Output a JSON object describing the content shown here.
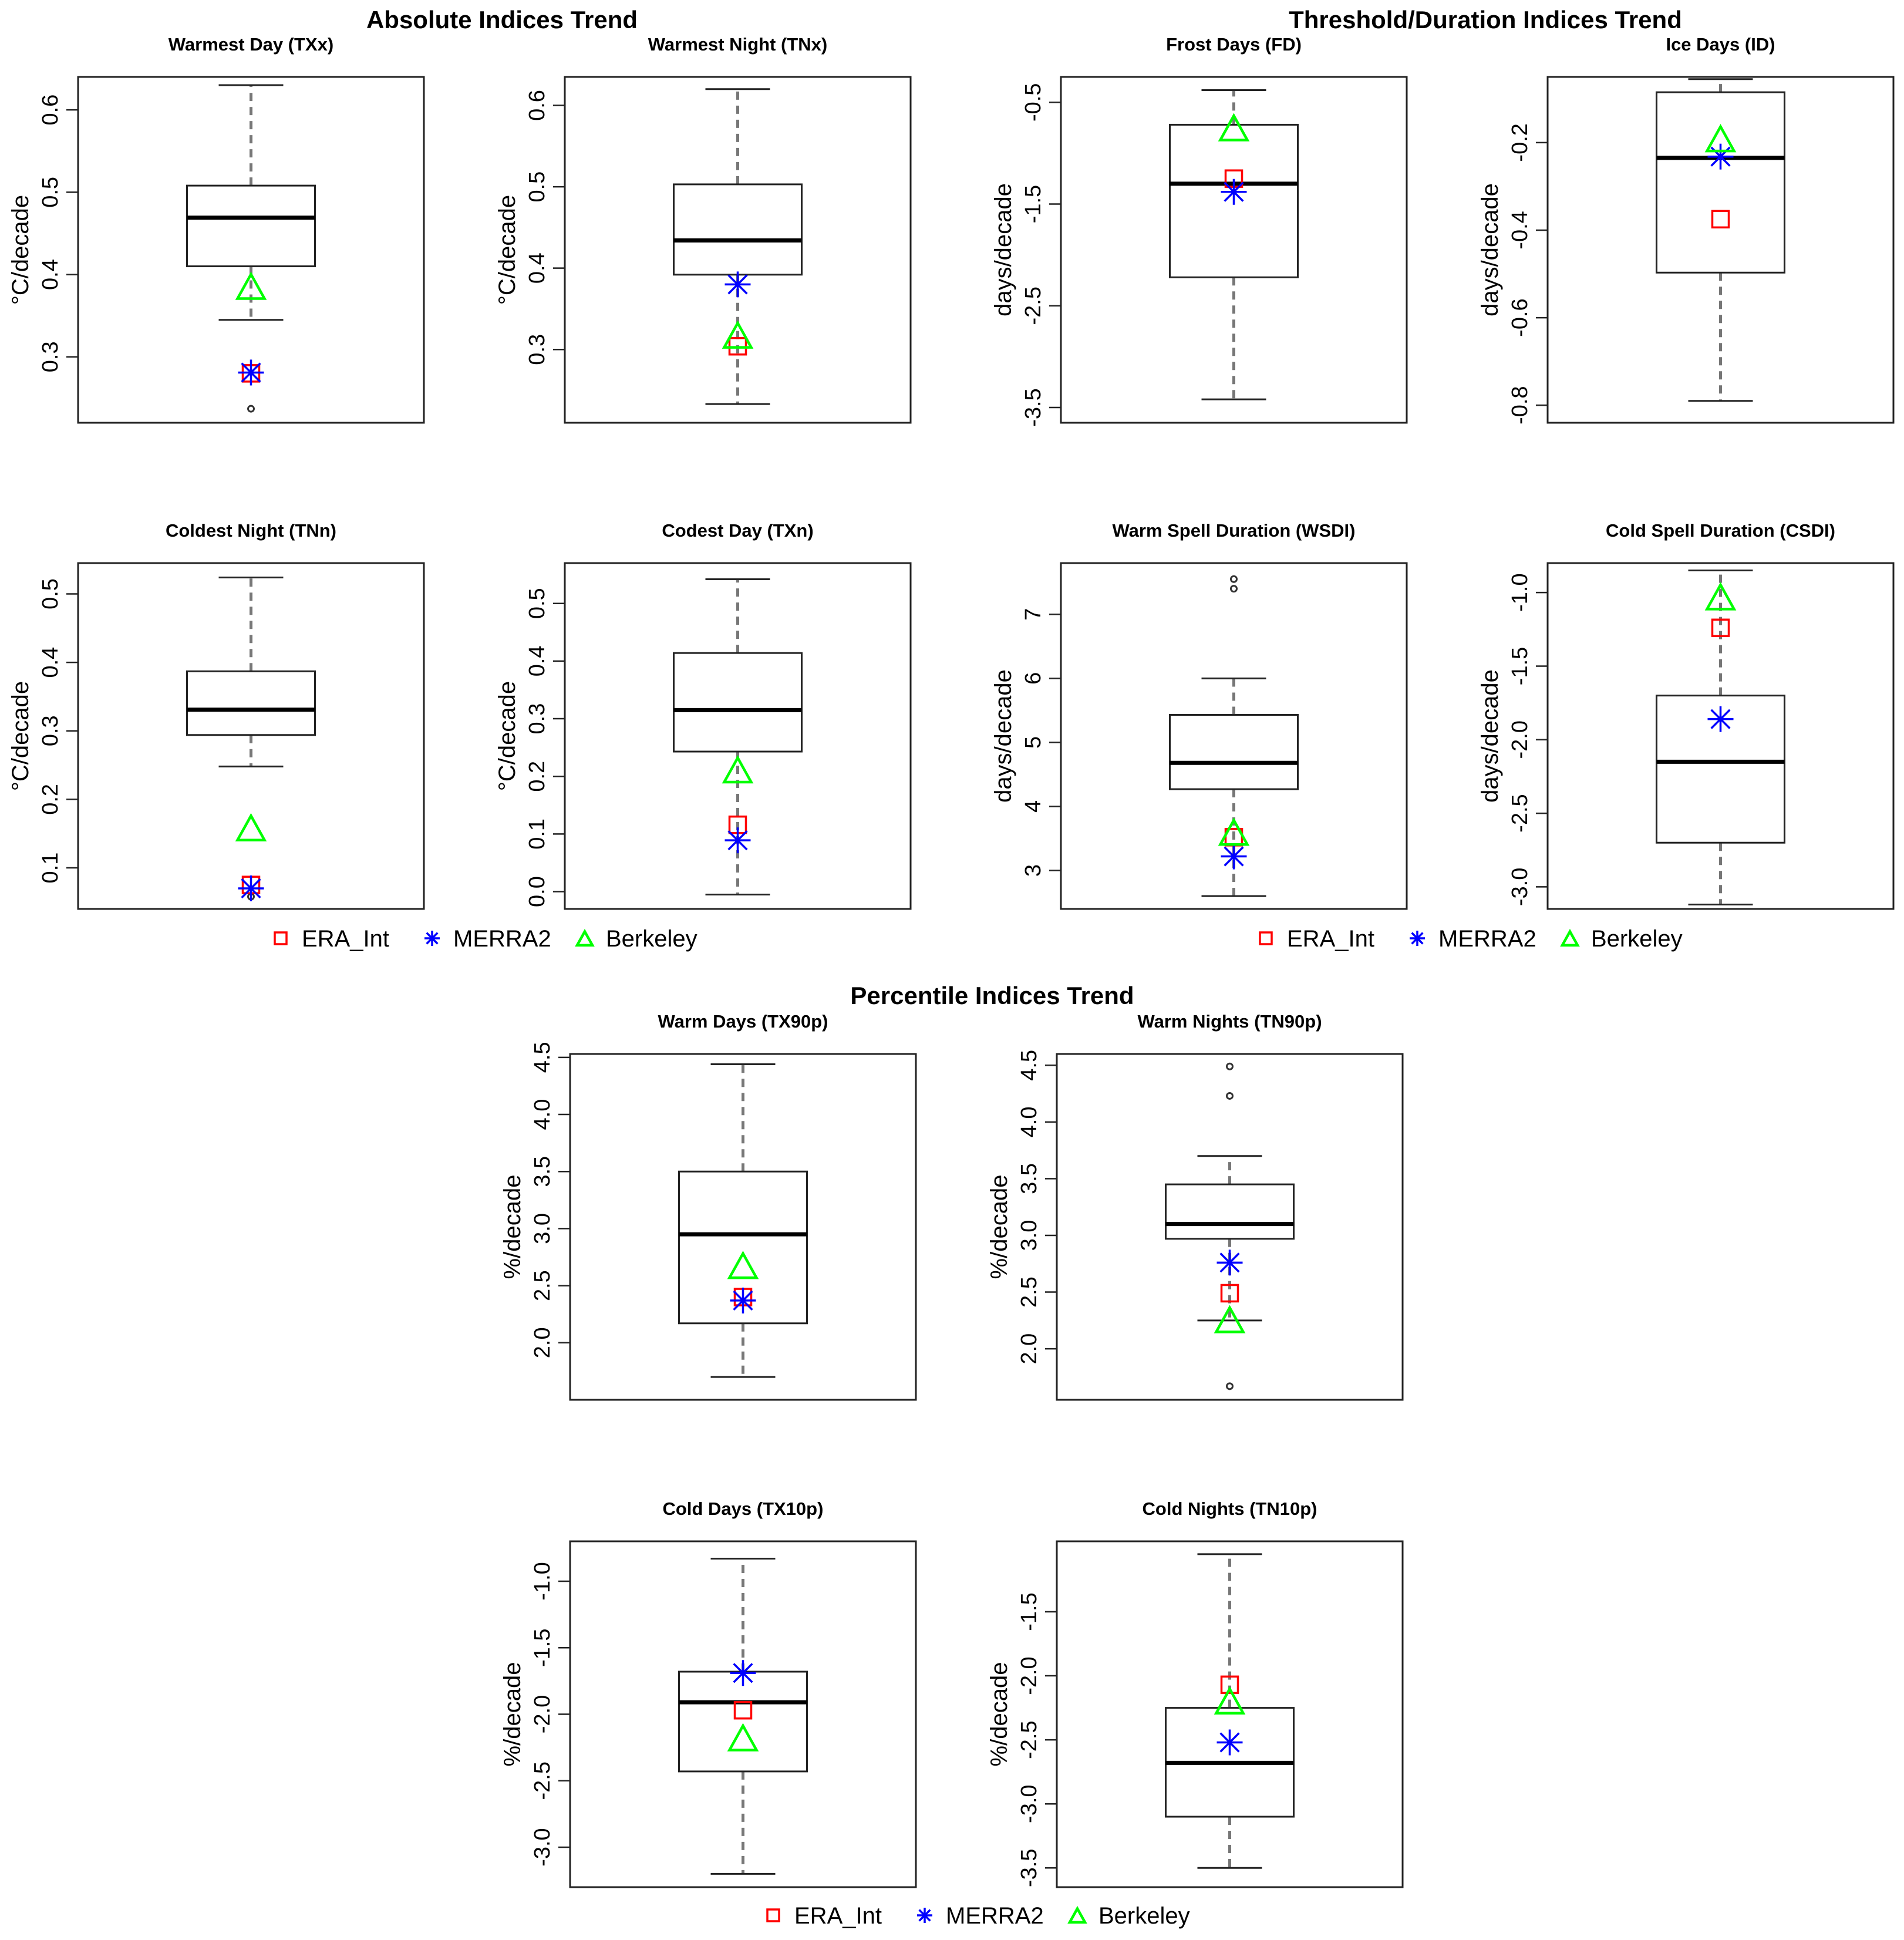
{
  "sections": {
    "absolute": "Absolute Indices Trend",
    "threshold": "Threshold/Duration Indices Trend",
    "percentile": "Percentile Indices Trend"
  },
  "legend": {
    "items": [
      {
        "name": "ERA_Int",
        "marker": "square",
        "color": "#ff0000"
      },
      {
        "name": "MERRA2",
        "marker": "asterisk",
        "color": "#0000ff"
      },
      {
        "name": "Berkeley",
        "marker": "triangle",
        "color": "#00ff00"
      }
    ]
  },
  "chart_data": [
    {
      "type": "box",
      "id": "txx",
      "title": "Warmest Day (TXx)",
      "ylabel": "°C/decade",
      "ylim": [
        0.22,
        0.64
      ],
      "ticks": [
        0.3,
        0.4,
        0.5,
        0.6
      ],
      "tick_labels": [
        "0.3",
        "0.4",
        "0.5",
        "0.6"
      ],
      "box": {
        "whisker_low": 0.345,
        "q1": 0.41,
        "median": 0.469,
        "q3": 0.508,
        "whisker_high": 0.63
      },
      "outliers": [
        0.237
      ],
      "markers": {
        "ERA_Int": 0.28,
        "MERRA2": 0.281,
        "Berkeley": 0.382
      }
    },
    {
      "type": "box",
      "id": "tnx",
      "title": "Warmest Night (TNx)",
      "ylabel": "°C/decade",
      "ylim": [
        0.21,
        0.635
      ],
      "ticks": [
        0.3,
        0.4,
        0.5,
        0.6
      ],
      "tick_labels": [
        "0.3",
        "0.4",
        "0.5",
        "0.6"
      ],
      "box": {
        "whisker_low": 0.233,
        "q1": 0.392,
        "median": 0.434,
        "q3": 0.503,
        "whisker_high": 0.62
      },
      "outliers": [],
      "markers": {
        "ERA_Int": 0.304,
        "MERRA2": 0.38,
        "Berkeley": 0.314
      }
    },
    {
      "type": "box",
      "id": "fd",
      "title": "Frost Days (FD)",
      "ylabel": "days/decade",
      "ylim": [
        -3.65,
        -0.25
      ],
      "ticks": [
        -3.5,
        -2.5,
        -1.5,
        -0.5
      ],
      "tick_labels": [
        "-3.5",
        "-2.5",
        "-1.5",
        "-0.5"
      ],
      "box": {
        "whisker_low": -3.42,
        "q1": -2.22,
        "median": -1.3,
        "q3": -0.72,
        "whisker_high": -0.38
      },
      "outliers": [],
      "markers": {
        "ERA_Int": -1.25,
        "MERRA2": -1.38,
        "Berkeley": -0.78
      }
    },
    {
      "type": "box",
      "id": "id",
      "title": "Ice Days (ID)",
      "ylabel": "days/decade",
      "ylim": [
        -0.84,
        -0.05
      ],
      "ticks": [
        -0.8,
        -0.6,
        -0.4,
        -0.2
      ],
      "tick_labels": [
        "-0.8",
        "-0.6",
        "-0.4",
        "-0.2"
      ],
      "box": {
        "whisker_low": -0.79,
        "q1": -0.497,
        "median": -0.235,
        "q3": -0.085,
        "whisker_high": -0.055
      },
      "outliers": [],
      "markers": {
        "ERA_Int": -0.375,
        "MERRA2": -0.232,
        "Berkeley": -0.198
      }
    },
    {
      "type": "box",
      "id": "tnn",
      "title": "Coldest Night (TNn)",
      "ylabel": "°C/decade",
      "ylim": [
        0.04,
        0.545
      ],
      "ticks": [
        0.1,
        0.2,
        0.3,
        0.4,
        0.5
      ],
      "tick_labels": [
        "0.1",
        "0.2",
        "0.3",
        "0.4",
        "0.5"
      ],
      "box": {
        "whisker_low": 0.248,
        "q1": 0.294,
        "median": 0.331,
        "q3": 0.387,
        "whisker_high": 0.524
      },
      "outliers": [
        0.058
      ],
      "markers": {
        "ERA_Int": 0.075,
        "MERRA2": 0.07,
        "Berkeley": 0.154
      }
    },
    {
      "type": "box",
      "id": "txn",
      "title": "Codest Day (TXn)",
      "ylabel": "°C/decade",
      "ylim": [
        -0.03,
        0.57
      ],
      "ticks": [
        0.0,
        0.1,
        0.2,
        0.3,
        0.4,
        0.5
      ],
      "tick_labels": [
        "0.0",
        "0.1",
        "0.2",
        "0.3",
        "0.4",
        "0.5"
      ],
      "box": {
        "whisker_low": -0.005,
        "q1": 0.243,
        "median": 0.315,
        "q3": 0.414,
        "whisker_high": 0.542
      },
      "outliers": [],
      "markers": {
        "ERA_Int": 0.116,
        "MERRA2": 0.089,
        "Berkeley": 0.206
      }
    },
    {
      "type": "box",
      "id": "wsdi",
      "title": "Warm Spell Duration (WSDI)",
      "ylabel": "days/decade",
      "ylim": [
        2.4,
        7.8
      ],
      "ticks": [
        3,
        4,
        5,
        6,
        7
      ],
      "tick_labels": [
        "3",
        "4",
        "5",
        "6",
        "7"
      ],
      "box": {
        "whisker_low": 2.6,
        "q1": 4.27,
        "median": 4.68,
        "q3": 5.43,
        "whisker_high": 6.0
      },
      "outliers": [
        7.4,
        7.55
      ],
      "markers": {
        "ERA_Int": 3.52,
        "MERRA2": 3.22,
        "Berkeley": 3.55
      }
    },
    {
      "type": "box",
      "id": "csdi",
      "title": "Cold Spell Duration (CSDI)",
      "ylabel": "days/decade",
      "ylim": [
        -3.15,
        -0.8
      ],
      "ticks": [
        -3.0,
        -2.5,
        -2.0,
        -1.5,
        -1.0
      ],
      "tick_labels": [
        "-3.0",
        "-2.5",
        "-2.0",
        "-1.5",
        "-1.0"
      ],
      "box": {
        "whisker_low": -3.12,
        "q1": -2.7,
        "median": -2.15,
        "q3": -1.7,
        "whisker_high": -0.85
      },
      "outliers": [],
      "markers": {
        "ERA_Int": -1.24,
        "MERRA2": -1.86,
        "Berkeley": -1.05
      }
    },
    {
      "type": "box",
      "id": "tx90p",
      "title": "Warm Days (TX90p)",
      "ylabel": "%/decade",
      "ylim": [
        1.5,
        4.53
      ],
      "ticks": [
        2.0,
        2.5,
        3.0,
        3.5,
        4.0,
        4.5
      ],
      "tick_labels": [
        "2.0",
        "2.5",
        "3.0",
        "3.5",
        "4.0",
        "4.5"
      ],
      "box": {
        "whisker_low": 1.7,
        "q1": 2.17,
        "median": 2.95,
        "q3": 3.5,
        "whisker_high": 4.44
      },
      "outliers": [],
      "markers": {
        "ERA_Int": 2.4,
        "MERRA2": 2.37,
        "Berkeley": 2.65
      }
    },
    {
      "type": "box",
      "id": "tn90p",
      "title": "Warm Nights (TN90p)",
      "ylabel": "%/decade",
      "ylim": [
        1.55,
        4.6
      ],
      "ticks": [
        2.0,
        2.5,
        3.0,
        3.5,
        4.0,
        4.5
      ],
      "tick_labels": [
        "2.0",
        "2.5",
        "3.0",
        "3.5",
        "4.0",
        "4.5"
      ],
      "box": {
        "whisker_low": 2.25,
        "q1": 2.97,
        "median": 3.1,
        "q3": 3.45,
        "whisker_high": 3.7
      },
      "outliers": [
        1.67,
        4.23,
        4.49
      ],
      "markers": {
        "ERA_Int": 2.49,
        "MERRA2": 2.76,
        "Berkeley": 2.23
      }
    },
    {
      "type": "box",
      "id": "tx10p",
      "title": "Cold Days (TX10p)",
      "ylabel": "%/decade",
      "ylim": [
        -3.3,
        -0.7
      ],
      "ticks": [
        -3.0,
        -2.5,
        -2.0,
        -1.5,
        -1.0
      ],
      "tick_labels": [
        "-3.0",
        "-2.5",
        "-2.0",
        "-1.5",
        "-1.0"
      ],
      "box": {
        "whisker_low": -3.2,
        "q1": -2.43,
        "median": -1.91,
        "q3": -1.68,
        "whisker_high": -0.83
      },
      "outliers": [],
      "markers": {
        "ERA_Int": -1.97,
        "MERRA2": -1.69,
        "Berkeley": -2.2
      }
    },
    {
      "type": "box",
      "id": "tn10p",
      "title": "Cold Nights (TN10p)",
      "ylabel": "%/decade",
      "ylim": [
        -3.65,
        -0.95
      ],
      "ticks": [
        -3.5,
        -3.0,
        -2.5,
        -2.0,
        -1.5
      ],
      "tick_labels": [
        "-3.5",
        "-3.0",
        "-2.5",
        "-2.0",
        "-1.5"
      ],
      "box": {
        "whisker_low": -3.5,
        "q1": -3.1,
        "median": -2.68,
        "q3": -2.25,
        "whisker_high": -1.05
      },
      "outliers": [],
      "markers": {
        "ERA_Int": -2.07,
        "MERRA2": -2.52,
        "Berkeley": -2.22
      }
    }
  ]
}
